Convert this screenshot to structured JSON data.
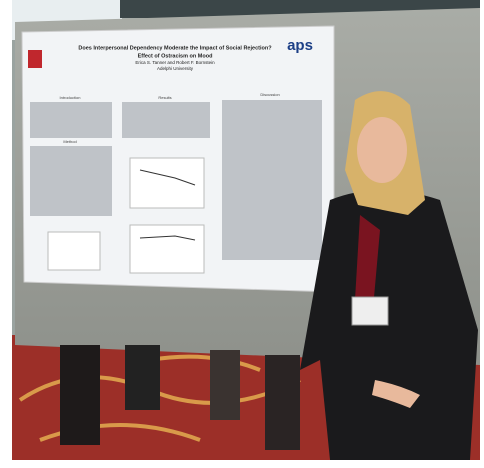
{
  "poster": {
    "title": "Does Interpersonal Dependency Moderate the Impact of Social Rejection?",
    "subtitle": "Effect of Ostracism on Mood",
    "authors": "Erica S. Tanner and Robert F. Bornstein",
    "affiliation": "Adelphi University",
    "logo": "aps",
    "sections": [
      "Introduction",
      "Method",
      "Results",
      "Discussion"
    ]
  }
}
